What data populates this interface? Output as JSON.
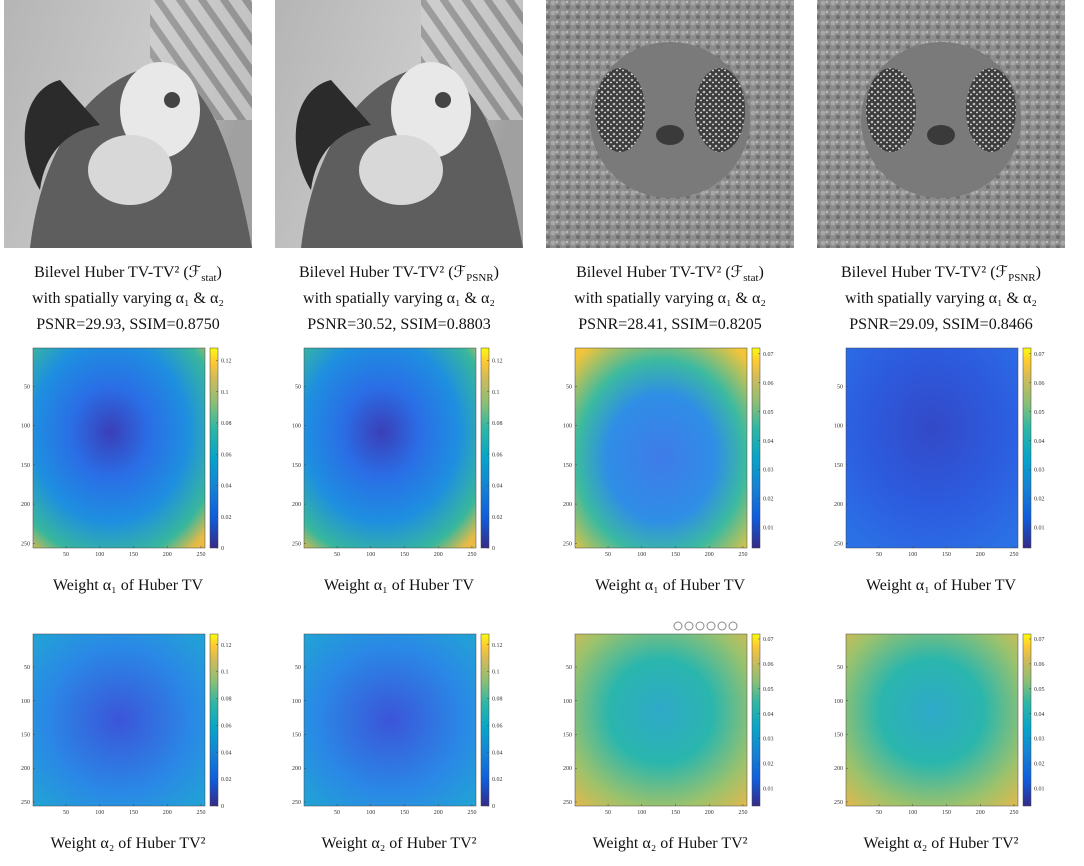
{
  "columns": [
    {
      "image_caption": {
        "prefix": "Bilevel Huber TV-TV² (ℱ",
        "sub": "stat",
        "suffix": ")",
        "line2": "with spatially varying α₁ & α₂",
        "line3": "PSNR=29.93, SSIM=0.8750"
      },
      "colorbar_lim": [
        0,
        0.128
      ],
      "colorbar_ticks": [
        0,
        0.02,
        0.04,
        0.06,
        0.08,
        0.1,
        0.12
      ],
      "maps": [
        {
          "caption": "Weight α₁ of Huber TV"
        },
        {
          "caption": "Weight α₂ of Huber TV²"
        }
      ]
    },
    {
      "image_caption": {
        "prefix": "Bilevel Huber TV-TV² (ℱ",
        "sub": "PSNR",
        "suffix": ")",
        "line2": "with spatially varying α₁ & α₂",
        "line3": "PSNR=30.52, SSIM=0.8803"
      },
      "colorbar_lim": [
        0,
        0.128
      ],
      "colorbar_ticks": [
        0,
        0.02,
        0.04,
        0.06,
        0.08,
        0.1,
        0.12
      ],
      "maps": [
        {
          "caption": "Weight α₁ of Huber TV"
        },
        {
          "caption": "Weight α₂ of Huber TV²"
        }
      ]
    },
    {
      "image_caption": {
        "prefix": "Bilevel Huber TV-TV² (ℱ",
        "sub": "stat",
        "suffix": ")",
        "line2": "with spatially varying α₁ & α₂",
        "line3": "PSNR=28.41, SSIM=0.8205"
      },
      "colorbar_lim": [
        0.003,
        0.072
      ],
      "colorbar_ticks": [
        0.01,
        0.02,
        0.03,
        0.04,
        0.05,
        0.06,
        0.07
      ],
      "maps": [
        {
          "caption": "Weight α₁ of Huber TV"
        },
        {
          "caption": "Weight α₂ of Huber TV²"
        }
      ]
    },
    {
      "image_caption": {
        "prefix": "Bilevel Huber TV-TV² (ℱ",
        "sub": "PSNR",
        "suffix": ")",
        "line2": "with spatially varying α₁ & α₂",
        "line3": "PSNR=29.09, SSIM=0.8466"
      },
      "colorbar_lim": [
        0.003,
        0.072
      ],
      "colorbar_ticks": [
        0.01,
        0.02,
        0.03,
        0.04,
        0.05,
        0.06,
        0.07
      ],
      "maps": [
        {
          "caption": "Weight α₁ of Huber TV"
        },
        {
          "caption": "Weight α₂ of Huber TV²"
        }
      ]
    }
  ],
  "map_xlim": [
    1,
    256
  ],
  "map_ylim": [
    1,
    256
  ],
  "map_xticks": [
    50,
    100,
    150,
    200,
    250
  ],
  "map_yticks": [
    50,
    100,
    150,
    200,
    250
  ]
}
